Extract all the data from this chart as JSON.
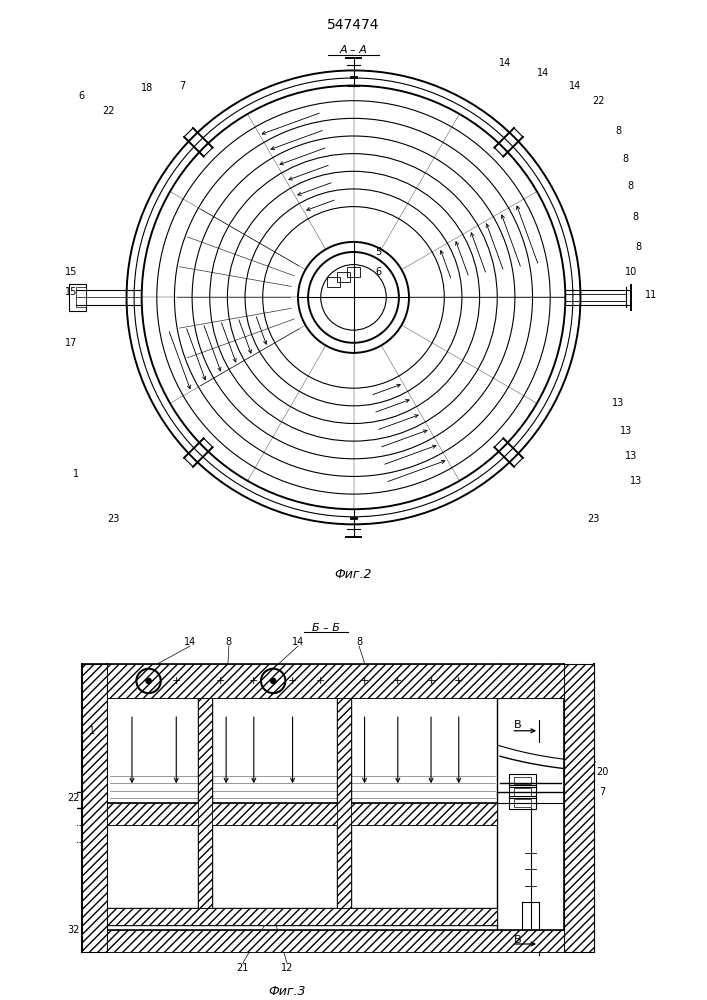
{
  "title": "547474",
  "fig2_label": "А – А",
  "fig2_caption": "Фиг.2",
  "fig3_label": "Б – Б",
  "fig3_caption": "Фиг.3",
  "bg_color": "#ffffff"
}
